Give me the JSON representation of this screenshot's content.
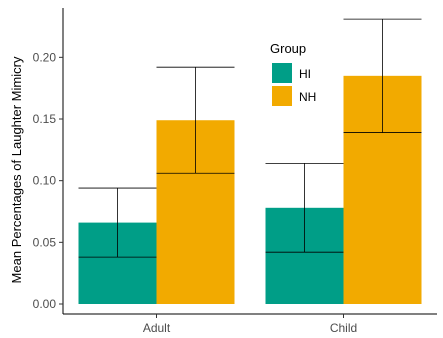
{
  "chart_data": {
    "type": "bar",
    "title": "",
    "xlabel": "",
    "ylabel": "Mean Percentages of Laughter Mimicry",
    "categories": [
      "Adult",
      "Child"
    ],
    "ylim": [
      0,
      0.24
    ],
    "yticks": [
      "0.00",
      "0.05",
      "0.10",
      "0.15",
      "0.20"
    ],
    "grid": false,
    "legend": {
      "title": "Group",
      "position": "top-right inside"
    },
    "series": [
      {
        "name": "HI",
        "color": "#009E87",
        "values": [
          0.066,
          0.078
        ],
        "error_low": [
          0.038,
          0.042
        ],
        "error_high": [
          0.094,
          0.114
        ]
      },
      {
        "name": "NH",
        "color": "#F2AA00",
        "values": [
          0.149,
          0.185
        ],
        "error_low": [
          0.106,
          0.139
        ],
        "error_high": [
          0.192,
          0.231
        ]
      }
    ]
  }
}
